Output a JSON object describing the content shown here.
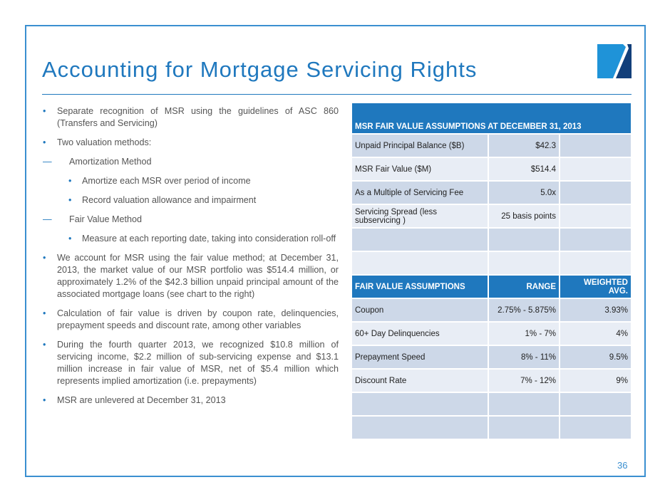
{
  "title": "Accounting for Mortgage Servicing Rights",
  "page_number": "36",
  "bullets": {
    "b1": "Separate recognition of MSR using the guidelines of ASC 860 (Transfers and Servicing)",
    "b2": "Two valuation methods:",
    "d1": "Amortization Method",
    "s1": "Amortize each MSR over period of income",
    "s2": "Record valuation allowance and impairment",
    "d2": "Fair Value Method",
    "s3": "Measure at each reporting date, taking into consideration roll-off",
    "b3": "We account for MSR using the fair value method; at December 31, 2013, the market value of our MSR portfolio was $514.4 million, or approximately 1.2% of the $42.3 billion unpaid principal amount of the associated mortgage loans (see chart to the right)",
    "b4": "Calculation of fair value is driven by coupon rate, delinquencies, prepayment speeds and discount rate, among other variables",
    "b5": "During the fourth quarter 2013, we recognized $10.8 million of servicing income, $2.2 million of sub-servicing expense and $13.1 million increase in fair value of MSR, net of $5.4 million which represents implied amortization (i.e. prepayments)",
    "b6": "MSR are unlevered at December 31, 2013"
  },
  "table": {
    "header": "MSR FAIR VALUE ASSUMPTIONS AT DECEMBER 31, 2013",
    "rows": [
      {
        "label": "Unpaid Principal Balance ($B)",
        "value": "$42.3"
      },
      {
        "label": "MSR Fair Value ($M)",
        "value": "$514.4"
      },
      {
        "label": "As a Multiple of Servicing Fee",
        "value": "5.0x"
      },
      {
        "label": "Servicing Spread (less subservicing )",
        "value": "25 basis points"
      }
    ],
    "header2": [
      "FAIR VALUE ASSUMPTIONS",
      "RANGE",
      "WEIGHTED AVG."
    ],
    "rows2": [
      {
        "label": "Coupon",
        "range": "2.75% - 5.875%",
        "avg": "3.93%"
      },
      {
        "label": "60+ Day Delinquencies",
        "range": "1% - 7%",
        "avg": "4%"
      },
      {
        "label": "Prepayment Speed",
        "range": "8% - 11%",
        "avg": "9.5%"
      },
      {
        "label": "Discount Rate",
        "range": "7% - 12%",
        "avg": "9%"
      }
    ]
  },
  "colors": {
    "accent": "#1f78be",
    "row_dark": "#cdd8e8",
    "row_light": "#e8edf5",
    "logo_light": "#1f93d8",
    "logo_dark": "#123f7a"
  }
}
